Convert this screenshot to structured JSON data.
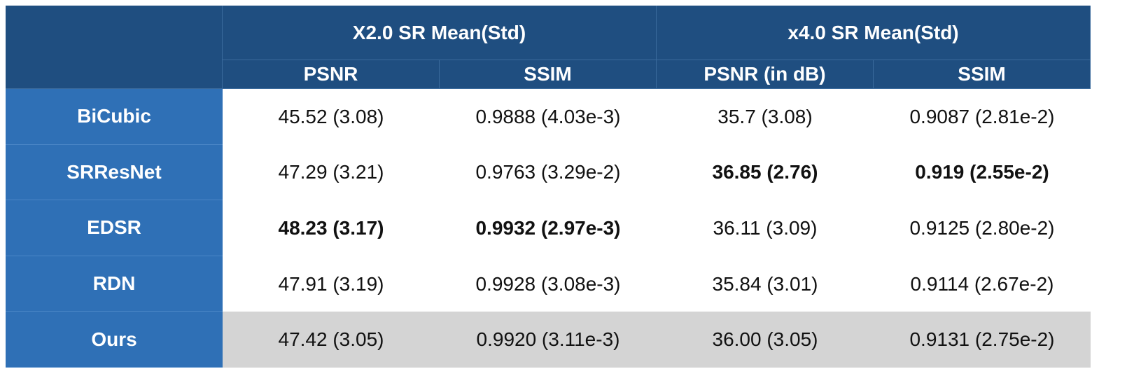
{
  "table": {
    "group_headers": [
      "X2.0 SR Mean(Std)",
      "x4.0 SR Mean(Std)"
    ],
    "column_headers": [
      "PSNR",
      "SSIM",
      "PSNR (in dB)",
      "SSIM"
    ],
    "rows": [
      {
        "label": "BiCubic",
        "cells": [
          "45.52 (3.08)",
          "0.9888 (4.03e-3)",
          "35.7 (3.08)",
          "0.9087 (2.81e-2)"
        ],
        "bold": [],
        "highlight": false
      },
      {
        "label": "SRResNet",
        "cells": [
          "47.29 (3.21)",
          "0.9763 (3.29e-2)",
          "36.85 (2.76)",
          "0.919 (2.55e-2)"
        ],
        "bold": [
          2,
          3
        ],
        "highlight": false
      },
      {
        "label": "EDSR",
        "cells": [
          "48.23 (3.17)",
          "0.9932 (2.97e-3)",
          "36.11 (3.09)",
          "0.9125 (2.80e-2)"
        ],
        "bold": [
          0,
          1
        ],
        "highlight": false
      },
      {
        "label": "RDN",
        "cells": [
          "47.91 (3.19)",
          "0.9928 (3.08e-3)",
          "35.84 (3.01)",
          "0.9114 (2.67e-2)"
        ],
        "bold": [],
        "highlight": false
      },
      {
        "label": "Ours",
        "cells": [
          "47.42 (3.05)",
          "0.9920 (3.11e-3)",
          "36.00 (3.05)",
          "0.9131 (2.75e-2)"
        ],
        "bold": [],
        "highlight": true
      }
    ]
  }
}
